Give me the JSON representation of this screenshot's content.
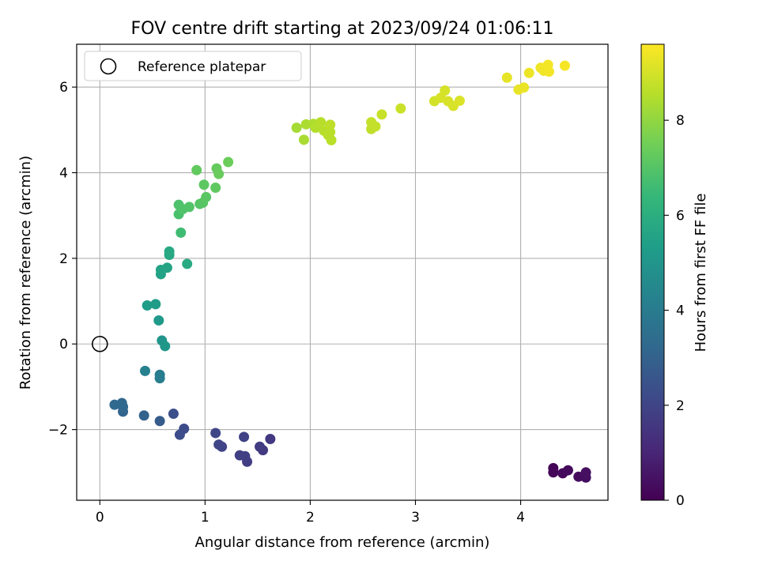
{
  "chart_data": {
    "type": "scatter",
    "title": "FOV centre drift starting at 2023/09/24 01:06:11",
    "xlabel": "Angular distance from reference (arcmin)",
    "ylabel": "Rotation from reference (arcmin)",
    "xlim": [
      -0.22,
      4.83
    ],
    "ylim": [
      -3.65,
      7.0
    ],
    "xticks": [
      0,
      1,
      2,
      3,
      4
    ],
    "yticks": [
      -2,
      0,
      2,
      4,
      6
    ],
    "xtick_labels": [
      "0",
      "1",
      "2",
      "3",
      "4"
    ],
    "ytick_labels": [
      "−2",
      "0",
      "2",
      "4",
      "6"
    ],
    "grid": true,
    "legend": {
      "placement": "top-left",
      "entries": [
        "Reference platepar"
      ]
    },
    "reference_point": {
      "x": 0,
      "y": 0
    },
    "colorbar": {
      "label": "Hours from first FF file",
      "range": [
        0,
        9.6
      ],
      "ticks": [
        0,
        2,
        4,
        6,
        8
      ],
      "tick_labels": [
        "0",
        "2",
        "4",
        "6",
        "8"
      ],
      "colormap": "viridis"
    },
    "points": [
      {
        "x": 4.31,
        "y": -2.9,
        "t": 0.1
      },
      {
        "x": 4.31,
        "y": -3.0,
        "t": 0.15
      },
      {
        "x": 4.4,
        "y": -3.02,
        "t": 0.2
      },
      {
        "x": 4.45,
        "y": -2.95,
        "t": 0.25
      },
      {
        "x": 4.55,
        "y": -3.1,
        "t": 0.3
      },
      {
        "x": 4.62,
        "y": -3.12,
        "t": 0.35
      },
      {
        "x": 4.62,
        "y": -3.0,
        "t": 0.4
      },
      {
        "x": 1.62,
        "y": -2.22,
        "t": 1.6
      },
      {
        "x": 1.55,
        "y": -2.48,
        "t": 1.65
      },
      {
        "x": 1.52,
        "y": -2.4,
        "t": 1.7
      },
      {
        "x": 1.4,
        "y": -2.75,
        "t": 1.75
      },
      {
        "x": 1.38,
        "y": -2.62,
        "t": 1.8
      },
      {
        "x": 1.33,
        "y": -2.6,
        "t": 1.85
      },
      {
        "x": 1.37,
        "y": -2.17,
        "t": 1.9
      },
      {
        "x": 1.16,
        "y": -2.4,
        "t": 1.95
      },
      {
        "x": 1.13,
        "y": -2.35,
        "t": 2.0
      },
      {
        "x": 1.1,
        "y": -2.08,
        "t": 2.05
      },
      {
        "x": 0.8,
        "y": -1.98,
        "t": 2.2
      },
      {
        "x": 0.76,
        "y": -2.12,
        "t": 2.25
      },
      {
        "x": 0.7,
        "y": -1.63,
        "t": 2.35
      },
      {
        "x": 0.57,
        "y": -1.8,
        "t": 2.8
      },
      {
        "x": 0.42,
        "y": -1.67,
        "t": 3.0
      },
      {
        "x": 0.22,
        "y": -1.58,
        "t": 3.1
      },
      {
        "x": 0.22,
        "y": -1.47,
        "t": 3.15
      },
      {
        "x": 0.21,
        "y": -1.38,
        "t": 3.2
      },
      {
        "x": 0.14,
        "y": -1.42,
        "t": 3.25
      },
      {
        "x": 0.57,
        "y": -0.72,
        "t": 4.0
      },
      {
        "x": 0.57,
        "y": -0.8,
        "t": 4.05
      },
      {
        "x": 0.43,
        "y": -0.63,
        "t": 4.2
      },
      {
        "x": 0.59,
        "y": 0.08,
        "t": 5.0
      },
      {
        "x": 0.62,
        "y": -0.05,
        "t": 5.05
      },
      {
        "x": 0.56,
        "y": 0.55,
        "t": 5.15
      },
      {
        "x": 0.53,
        "y": 0.93,
        "t": 5.25
      },
      {
        "x": 0.45,
        "y": 0.9,
        "t": 5.3
      },
      {
        "x": 0.58,
        "y": 1.63,
        "t": 5.5
      },
      {
        "x": 0.58,
        "y": 1.73,
        "t": 5.55
      },
      {
        "x": 0.64,
        "y": 1.78,
        "t": 5.6
      },
      {
        "x": 0.66,
        "y": 2.08,
        "t": 5.7
      },
      {
        "x": 0.66,
        "y": 2.16,
        "t": 5.75
      },
      {
        "x": 0.83,
        "y": 1.87,
        "t": 5.85
      },
      {
        "x": 0.77,
        "y": 2.6,
        "t": 6.6
      },
      {
        "x": 0.75,
        "y": 3.03,
        "t": 6.8
      },
      {
        "x": 0.75,
        "y": 3.25,
        "t": 6.85
      },
      {
        "x": 0.79,
        "y": 3.15,
        "t": 6.9
      },
      {
        "x": 0.85,
        "y": 3.2,
        "t": 6.95
      },
      {
        "x": 0.95,
        "y": 3.27,
        "t": 7.0
      },
      {
        "x": 0.98,
        "y": 3.3,
        "t": 7.05
      },
      {
        "x": 1.01,
        "y": 3.43,
        "t": 7.1
      },
      {
        "x": 0.99,
        "y": 3.72,
        "t": 7.15
      },
      {
        "x": 1.1,
        "y": 3.65,
        "t": 7.2
      },
      {
        "x": 0.92,
        "y": 4.06,
        "t": 7.25
      },
      {
        "x": 1.11,
        "y": 4.1,
        "t": 7.3
      },
      {
        "x": 1.13,
        "y": 3.97,
        "t": 7.35
      },
      {
        "x": 1.22,
        "y": 4.25,
        "t": 7.4
      },
      {
        "x": 1.87,
        "y": 5.05,
        "t": 8.3
      },
      {
        "x": 1.94,
        "y": 4.77,
        "t": 8.35
      },
      {
        "x": 1.96,
        "y": 5.13,
        "t": 8.4
      },
      {
        "x": 2.03,
        "y": 5.14,
        "t": 8.45
      },
      {
        "x": 2.05,
        "y": 5.05,
        "t": 8.5
      },
      {
        "x": 2.08,
        "y": 5.1,
        "t": 8.5
      },
      {
        "x": 2.1,
        "y": 5.18,
        "t": 8.55
      },
      {
        "x": 2.13,
        "y": 4.98,
        "t": 8.55
      },
      {
        "x": 2.17,
        "y": 4.88,
        "t": 8.6
      },
      {
        "x": 2.2,
        "y": 4.76,
        "t": 8.6
      },
      {
        "x": 2.19,
        "y": 4.95,
        "t": 8.6
      },
      {
        "x": 2.19,
        "y": 5.12,
        "t": 8.65
      },
      {
        "x": 2.58,
        "y": 5.02,
        "t": 8.7
      },
      {
        "x": 2.58,
        "y": 5.18,
        "t": 8.75
      },
      {
        "x": 2.62,
        "y": 5.08,
        "t": 8.75
      },
      {
        "x": 2.68,
        "y": 5.36,
        "t": 8.8
      },
      {
        "x": 2.86,
        "y": 5.5,
        "t": 8.85
      },
      {
        "x": 3.18,
        "y": 5.67,
        "t": 8.95
      },
      {
        "x": 3.24,
        "y": 5.75,
        "t": 9.0
      },
      {
        "x": 3.28,
        "y": 5.92,
        "t": 9.0
      },
      {
        "x": 3.31,
        "y": 5.67,
        "t": 9.05
      },
      {
        "x": 3.36,
        "y": 5.56,
        "t": 9.05
      },
      {
        "x": 3.42,
        "y": 5.68,
        "t": 9.1
      },
      {
        "x": 3.87,
        "y": 6.22,
        "t": 9.25
      },
      {
        "x": 3.98,
        "y": 5.94,
        "t": 9.3
      },
      {
        "x": 4.03,
        "y": 5.99,
        "t": 9.3
      },
      {
        "x": 4.08,
        "y": 6.33,
        "t": 9.35
      },
      {
        "x": 4.19,
        "y": 6.45,
        "t": 9.4
      },
      {
        "x": 4.22,
        "y": 6.38,
        "t": 9.4
      },
      {
        "x": 4.25,
        "y": 6.48,
        "t": 9.45
      },
      {
        "x": 4.27,
        "y": 6.36,
        "t": 9.45
      },
      {
        "x": 4.26,
        "y": 6.52,
        "t": 9.45
      },
      {
        "x": 4.42,
        "y": 6.5,
        "t": 9.5
      }
    ]
  },
  "colors": {
    "viridis": [
      "#440154",
      "#482878",
      "#3e4989",
      "#31688e",
      "#26828e",
      "#1f9e89",
      "#35b779",
      "#6ece58",
      "#b5de2b",
      "#fde725"
    ],
    "grid": "#b0b0b0",
    "axis": "#000000"
  }
}
